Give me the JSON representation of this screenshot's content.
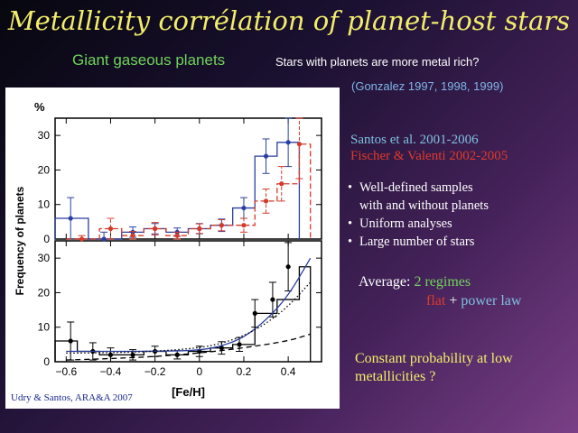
{
  "slide": {
    "title": "Metallicity corrélation of planet-host stars",
    "subtitle_left": "Giant gaseous planets",
    "subtitle_right": "Stars with planets are more metal rich?",
    "gonzalez": "(Gonzalez 1997, 1998, 1999)",
    "santos": "Santos et al. 2001-2006",
    "fischer": "Fischer & Valenti 2002-2005",
    "bullets": [
      "Well-defined samples",
      "with and without planets",
      "Uniform analyses",
      "Large number of stars"
    ],
    "average_label": "Average:",
    "average_regimes": "2 regimes",
    "flat": "flat",
    "plus": "+",
    "power_law": "power law",
    "constant_probability": "Constant probability at low metallicities ?",
    "credit": "Udry & Santos, ARA&A 2007",
    "colors": {
      "title": "#f2ee6a",
      "green": "#6fd35a",
      "blue": "#7fc0e0",
      "red": "#e03a2a"
    }
  },
  "chart_data": [
    {
      "type": "bar",
      "panel": "top",
      "ylabel_unit": "%",
      "shared_ylabel": "Frequency of planets",
      "xlim": [
        -0.65,
        0.55
      ],
      "ylim": [
        0,
        35
      ],
      "yticks": [
        0,
        10,
        20,
        30
      ],
      "series": [
        {
          "name": "",
          "color": "#2b3fa0",
          "bins": [
            [
              -0.65,
              -0.5
            ],
            [
              -0.5,
              -0.35
            ],
            [
              -0.35,
              -0.25
            ],
            [
              -0.25,
              -0.15
            ],
            [
              -0.15,
              -0.05
            ],
            [
              -0.05,
              0.05
            ],
            [
              0.05,
              0.15
            ],
            [
              0.15,
              0.25
            ],
            [
              0.25,
              0.35
            ],
            [
              0.35,
              0.45
            ]
          ],
          "x": [
            -0.58,
            -0.43,
            -0.3,
            -0.2,
            -0.1,
            0.0,
            0.1,
            0.2,
            0.3,
            0.4
          ],
          "values": [
            6,
            0,
            2,
            3,
            2,
            3,
            4,
            9,
            24,
            28
          ],
          "errors": [
            6,
            2,
            1.5,
            1.5,
            1.2,
            1.5,
            1.8,
            3,
            5,
            7
          ]
        },
        {
          "name": "",
          "color": "#d43a2a",
          "dashed": true,
          "bins": [
            [
              -0.6,
              -0.45
            ],
            [
              -0.45,
              -0.35
            ],
            [
              -0.35,
              -0.25
            ],
            [
              -0.25,
              -0.15
            ],
            [
              -0.15,
              -0.05
            ],
            [
              -0.05,
              0.05
            ],
            [
              0.05,
              0.15
            ],
            [
              0.15,
              0.25
            ],
            [
              0.25,
              0.35
            ],
            [
              0.35,
              0.45
            ],
            [
              0.45,
              0.5
            ]
          ],
          "x": [
            -0.53,
            -0.4,
            -0.3,
            -0.2,
            -0.1,
            0.0,
            0.1,
            0.2,
            0.3,
            0.37,
            0.45
          ],
          "values": [
            0,
            3,
            1,
            3,
            1,
            3,
            4,
            4,
            11,
            16,
            27.5
          ],
          "errors": [
            1,
            3,
            1.2,
            1.8,
            1,
            1.4,
            1.6,
            2,
            3.5,
            5,
            10
          ]
        }
      ]
    },
    {
      "type": "bar",
      "panel": "bottom",
      "xlabel": "[Fe/H]",
      "xlim": [
        -0.65,
        0.55
      ],
      "ylim": [
        0,
        35
      ],
      "xticks": [
        -0.6,
        -0.4,
        -0.2,
        0,
        0.2,
        0.4
      ],
      "xtick_labels": [
        "−0.6",
        "−0.4",
        "−0.2",
        "0",
        "0.2",
        "0.4"
      ],
      "yticks": [
        0,
        10,
        20,
        30
      ],
      "series": [
        {
          "name": "",
          "color": "#000000",
          "bins": [
            [
              -0.65,
              -0.55
            ],
            [
              -0.55,
              -0.45
            ],
            [
              -0.45,
              -0.35
            ],
            [
              -0.35,
              -0.25
            ],
            [
              -0.25,
              -0.15
            ],
            [
              -0.15,
              -0.05
            ],
            [
              -0.05,
              0.05
            ],
            [
              0.05,
              0.15
            ],
            [
              0.15,
              0.25
            ],
            [
              0.25,
              0.35
            ],
            [
              0.35,
              0.45
            ],
            [
              0.45,
              0.5
            ]
          ],
          "x": [
            -0.58,
            -0.48,
            -0.4,
            -0.3,
            -0.2,
            -0.1,
            0.0,
            0.1,
            0.18,
            0.25,
            0.33,
            0.4
          ],
          "values": [
            6,
            3,
            2,
            2,
            3,
            2,
            3,
            4,
            5,
            14,
            18,
            27.5
          ],
          "errors": [
            5.5,
            2.5,
            2,
            1.5,
            1.5,
            1.2,
            1.5,
            1.8,
            2,
            4,
            5,
            7
          ]
        }
      ],
      "curves": [
        {
          "style": "solid",
          "color": "#2b3fa0",
          "x": [
            -0.6,
            -0.4,
            -0.2,
            0,
            0.1,
            0.2,
            0.3,
            0.4,
            0.5
          ],
          "y": [
            3,
            3,
            3,
            3.3,
            4.5,
            7,
            12,
            19,
            30
          ]
        },
        {
          "style": "dotted",
          "color": "#000000",
          "x": [
            -0.6,
            -0.4,
            -0.2,
            0,
            0.1,
            0.2,
            0.3,
            0.4,
            0.5
          ],
          "y": [
            2.5,
            2.6,
            3,
            4,
            5.3,
            7.5,
            11,
            16,
            23
          ]
        },
        {
          "style": "dashed",
          "color": "#000000",
          "x": [
            -0.6,
            -0.4,
            -0.2,
            0,
            0.2,
            0.4,
            0.5
          ],
          "y": [
            0.5,
            0.9,
            1.5,
            2.5,
            4,
            6,
            8
          ]
        }
      ]
    }
  ]
}
